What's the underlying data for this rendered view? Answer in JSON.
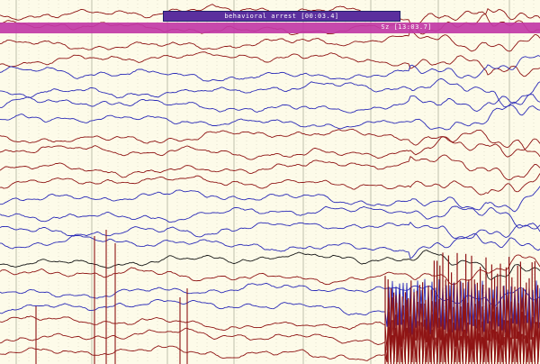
{
  "viewer": {
    "background": "#fdfbe9",
    "grid_major_color": "#b9b9a6",
    "grid_minor_color": "#d6d3be"
  },
  "events": {
    "behavioral_label": "behavioral arrest [00:03.4]",
    "seizure_label": "Sz [13:03.7]"
  },
  "colors": {
    "red": "#8f1414",
    "blue": "#2a2ab8",
    "black": "#151515"
  },
  "channels": [
    {
      "color": "red"
    },
    {
      "color": "red"
    },
    {
      "color": "red"
    },
    {
      "color": "red"
    },
    {
      "color": "blue"
    },
    {
      "color": "blue"
    },
    {
      "color": "blue"
    },
    {
      "color": "blue"
    },
    {
      "color": "red"
    },
    {
      "color": "red"
    },
    {
      "color": "red"
    },
    {
      "color": "red"
    },
    {
      "color": "blue"
    },
    {
      "color": "blue"
    },
    {
      "color": "blue"
    },
    {
      "color": "blue"
    },
    {
      "color": "black"
    },
    {
      "color": "red"
    },
    {
      "color": "blue"
    },
    {
      "color": "blue"
    },
    {
      "color": "red"
    },
    {
      "color": "red"
    },
    {
      "color": "red"
    }
  ]
}
